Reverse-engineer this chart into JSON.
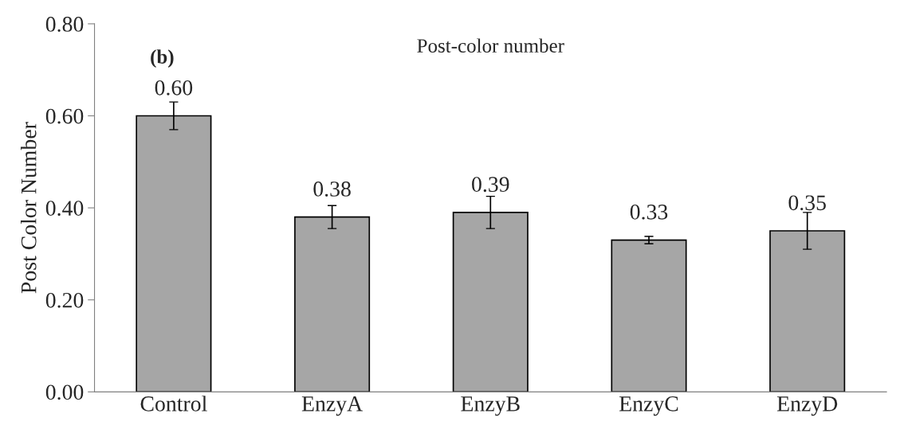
{
  "chart_data": {
    "type": "bar",
    "title": "Post-color number",
    "ylabel": "Post Color Number",
    "annotations": [
      "(b)"
    ],
    "categories": [
      "Control",
      "EnzyA",
      "EnzyB",
      "EnzyC",
      "EnzyD"
    ],
    "values": [
      0.6,
      0.38,
      0.39,
      0.33,
      0.35
    ],
    "errors": [
      0.03,
      0.025,
      0.035,
      0.008,
      0.04
    ],
    "value_labels": [
      "0.60",
      "0.38",
      "0.39",
      "0.33",
      "0.35"
    ],
    "color": "#a6a6a6",
    "ylim": [
      0,
      0.8
    ],
    "yticks": [
      {
        "value": 0,
        "label": "0.00"
      },
      {
        "value": 0.2,
        "label": "0.20"
      },
      {
        "value": 0.4,
        "label": "0.40"
      },
      {
        "value": 0.6,
        "label": "0.60"
      },
      {
        "value": 0.8,
        "label": "0.80"
      }
    ],
    "grid": false
  }
}
